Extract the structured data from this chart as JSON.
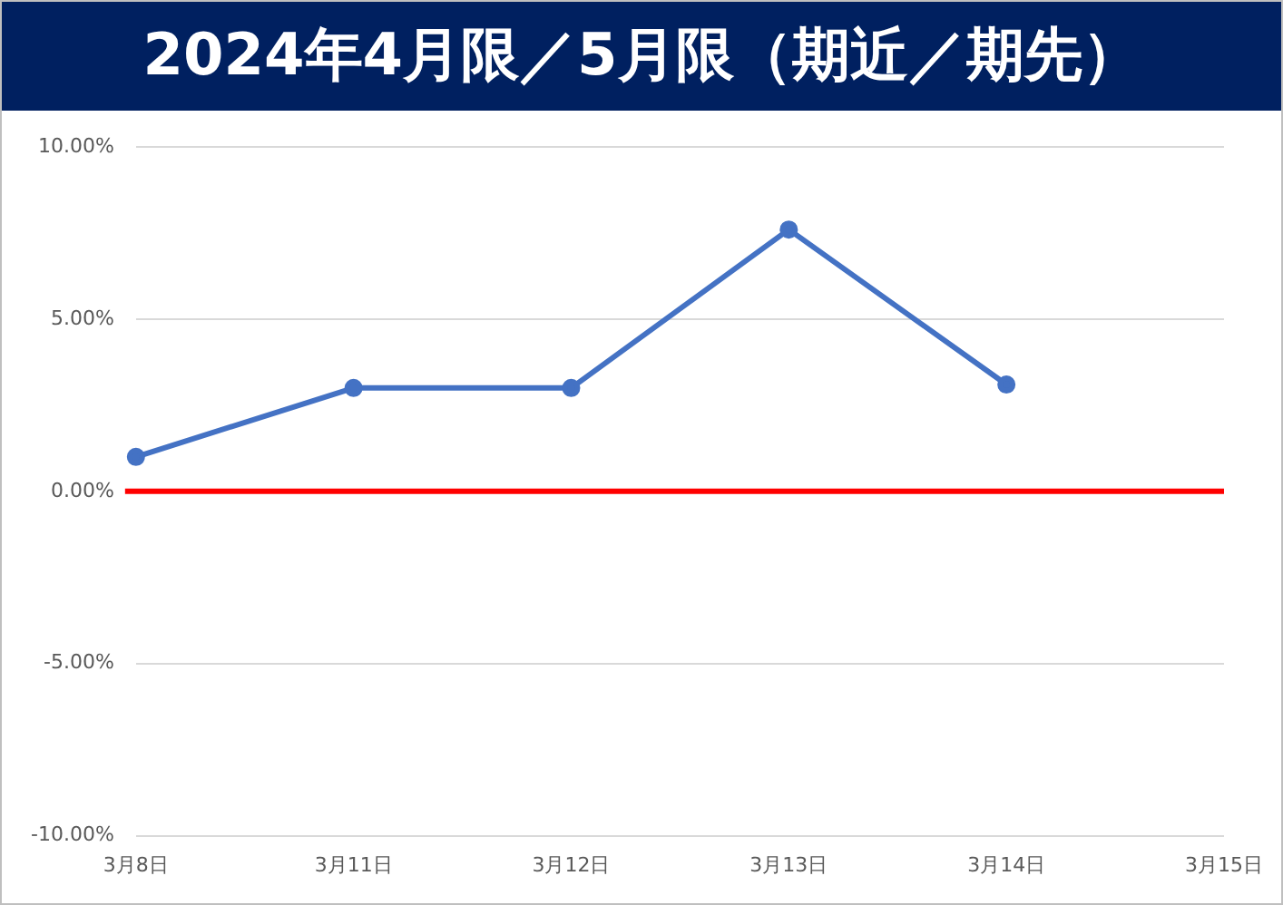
{
  "chart_data": {
    "type": "line",
    "title": "2024年4月限／5月限（期近／期先）",
    "categories": [
      "3月8日",
      "3月11日",
      "3月12日",
      "3月13日",
      "3月14日",
      "3月15日"
    ],
    "series": [
      {
        "color": "#4472c4",
        "values": [
          1.0,
          3.0,
          3.0,
          7.6,
          3.1,
          null
        ]
      }
    ],
    "ylim": [
      -10,
      10
    ],
    "yticks": [
      {
        "value": -10,
        "label": "-10.00%"
      },
      {
        "value": -5,
        "label": "-5.00%"
      },
      {
        "value": 0,
        "label": "0.00%"
      },
      {
        "value": 5,
        "label": "5.00%"
      },
      {
        "value": 10,
        "label": "10.00%"
      }
    ],
    "ref_lines": [
      {
        "axis": "y",
        "value": 0,
        "color": "#ff0000"
      }
    ],
    "grid": "y",
    "legend": false,
    "marker": "circle",
    "line_style": "solid"
  }
}
